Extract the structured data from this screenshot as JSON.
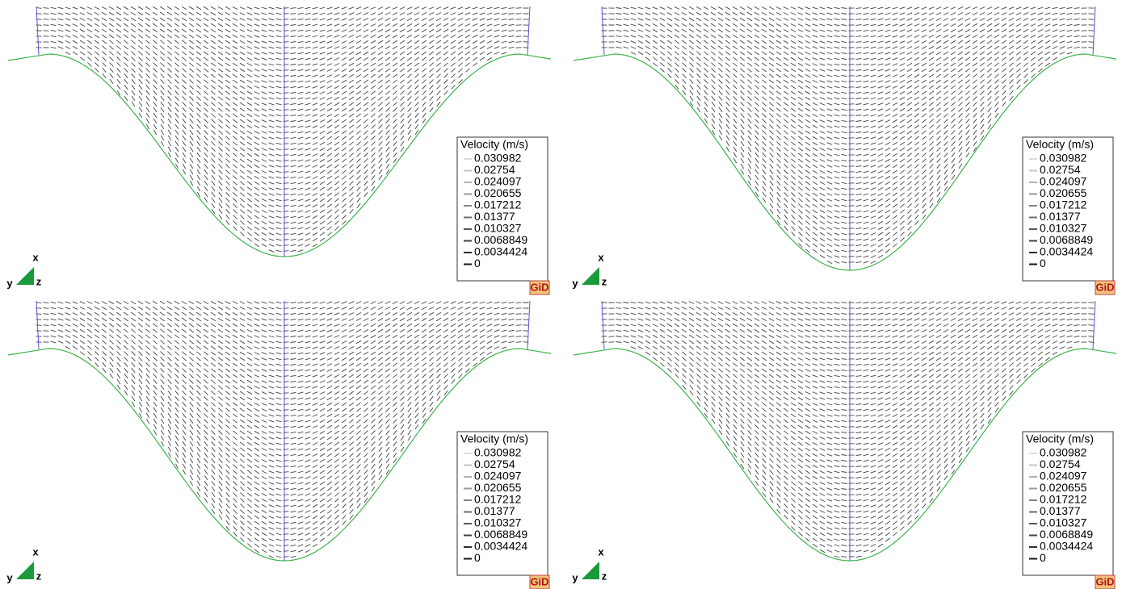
{
  "panels": [
    {
      "legend": {
        "title": "Velocity (m/s)",
        "values": [
          "0.030982",
          "0.02754",
          "0.024097",
          "0.020655",
          "0.017212",
          "0.01377",
          "0.010327",
          "0.0068849",
          "0.0034424",
          "0"
        ]
      },
      "triad": {
        "x": "x",
        "y": "y",
        "z": "z"
      },
      "logo": "GiD"
    },
    {
      "legend": {
        "title": "Velocity (m/s)",
        "values": [
          "0.030982",
          "0.02754",
          "0.024097",
          "0.020655",
          "0.017212",
          "0.01377",
          "0.010327",
          "0.0068849",
          "0.0034424",
          "0"
        ]
      },
      "triad": {
        "x": "x",
        "y": "y",
        "z": "z"
      },
      "logo": "GiD"
    },
    {
      "legend": {
        "title": "Velocity (m/s)",
        "values": [
          "0.030982",
          "0.02754",
          "0.024097",
          "0.020655",
          "0.017212",
          "0.01377",
          "0.010327",
          "0.0068849",
          "0.0034424",
          "0"
        ]
      },
      "triad": {
        "x": "x",
        "y": "y",
        "z": "z"
      },
      "logo": "GiD"
    },
    {
      "legend": {
        "title": "Velocity (m/s)",
        "values": [
          "0.030982",
          "0.02754",
          "0.024097",
          "0.020655",
          "0.017212",
          "0.01377",
          "0.010327",
          "0.0068849",
          "0.0034424",
          "0"
        ]
      },
      "triad": {
        "x": "x",
        "y": "y",
        "z": "z"
      },
      "logo": "GiD"
    }
  ]
}
